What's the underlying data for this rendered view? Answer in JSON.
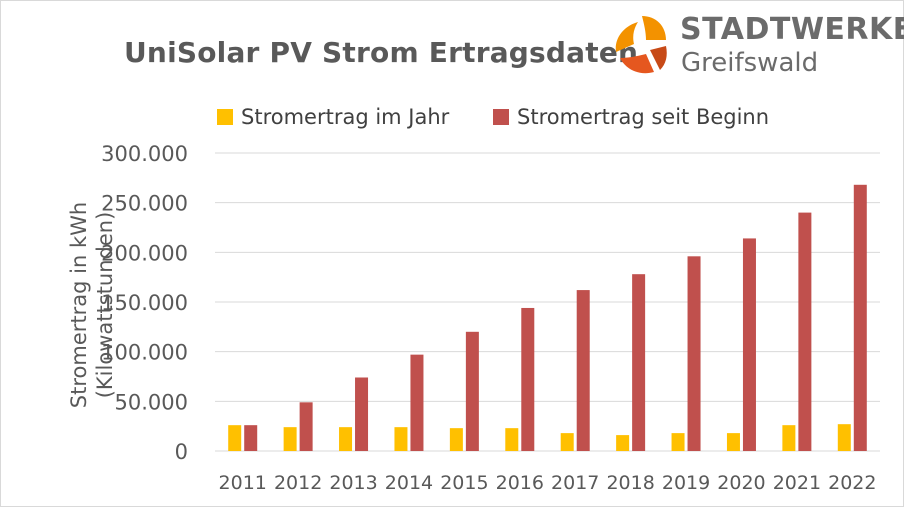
{
  "chart_data": {
    "type": "bar",
    "title": "UniSolar PV Strom Ertragsdaten",
    "ylabel": "Stromertrag in kWh (Kilowattstunden)",
    "xlabel": "",
    "ylim": [
      0,
      300000
    ],
    "yticks": [
      0,
      50000,
      100000,
      150000,
      200000,
      250000,
      300000
    ],
    "ytick_labels": [
      "0",
      "50.000",
      "100.000",
      "150.000",
      "200.000",
      "250.000",
      "300.000"
    ],
    "grid": true,
    "legend_position": "top",
    "categories": [
      "2011",
      "2012",
      "2013",
      "2014",
      "2015",
      "2016",
      "2017",
      "2018",
      "2019",
      "2020",
      "2021",
      "2022"
    ],
    "series": [
      {
        "name": "Stromertrag im Jahr",
        "color": "#ffc000",
        "values": [
          26000,
          24000,
          24000,
          24000,
          23000,
          23000,
          18000,
          16000,
          18000,
          18000,
          26000,
          27000
        ]
      },
      {
        "name": "Stromertrag seit Beginn",
        "color": "#c0504d",
        "values": [
          26000,
          49000,
          74000,
          97000,
          120000,
          144000,
          162000,
          178000,
          196000,
          214000,
          240000,
          268000
        ]
      }
    ]
  },
  "logo": {
    "name": "STADTWERKE",
    "city": "Greifswald",
    "colors": [
      "#f39200",
      "#e5571f",
      "#c74a17"
    ]
  }
}
